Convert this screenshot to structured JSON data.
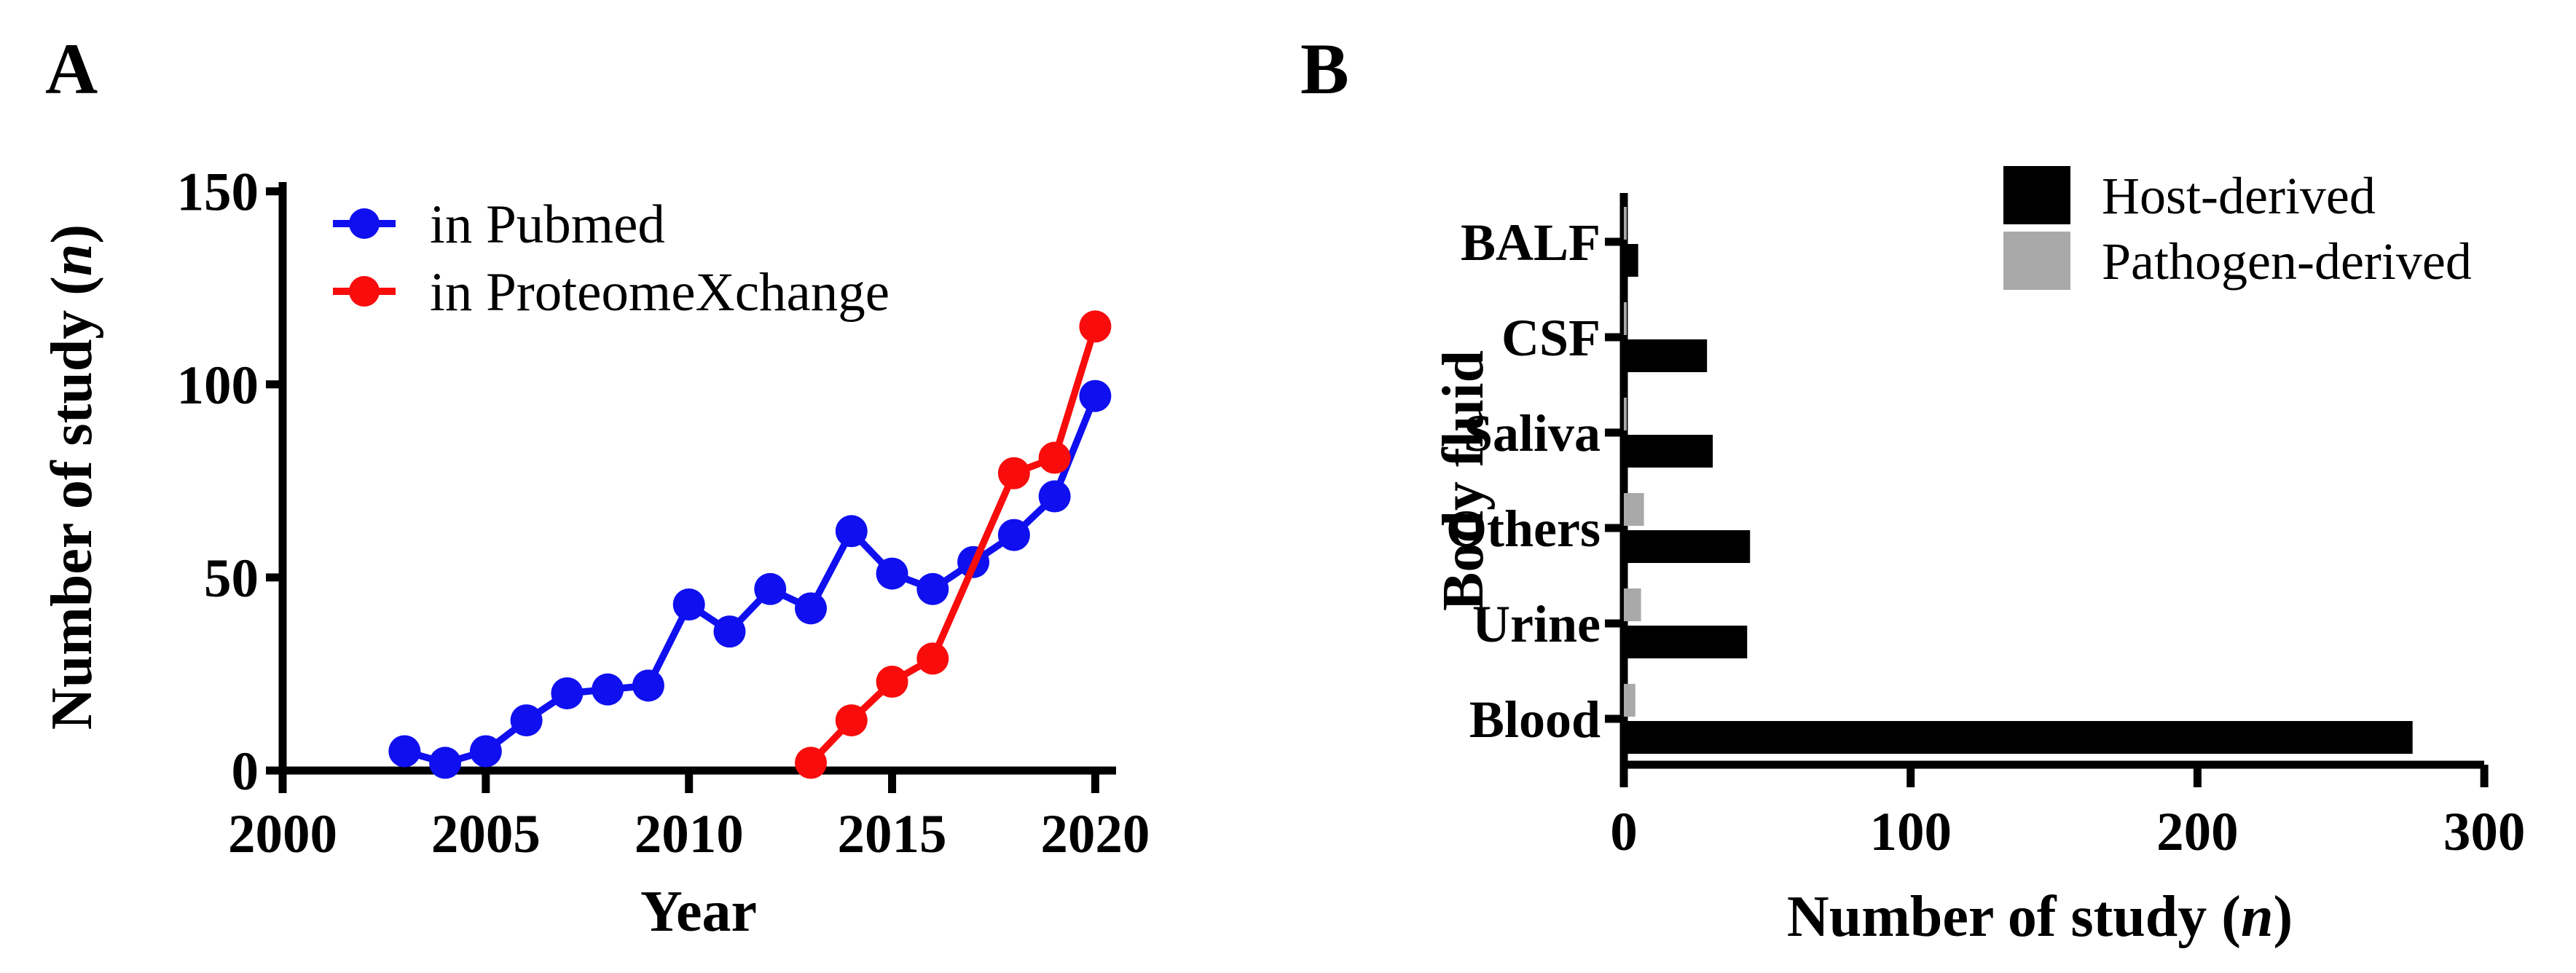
{
  "figure": {
    "type": "two-panel scientific figure",
    "background": "#ffffff"
  },
  "panels": {
    "a": {
      "letter": "A",
      "xlabel": "Year",
      "ylabel_prefix": "Number of study (",
      "ylabel_italic": "n",
      "ylabel_suffix": ")",
      "legend": [
        {
          "label": "in Pubmed"
        },
        {
          "label": "in ProteomeXchange"
        }
      ]
    },
    "b": {
      "letter": "B",
      "ylabel": "Body fluid",
      "xlabel_prefix": "Number of study (",
      "xlabel_italic": "n",
      "xlabel_suffix": ")",
      "legend": [
        {
          "label": "Host-derived"
        },
        {
          "label": "Pathogen-derived"
        }
      ]
    }
  },
  "colors": {
    "pubmed_blue": "#0f0ff0",
    "proteomexchange_red": "#f80c0c",
    "host_black": "#000000",
    "pathogen_gray": "#a9a9a9",
    "axis_black": "#000000"
  },
  "chart_data": [
    {
      "id": "studies-per-year",
      "type": "line",
      "title": "",
      "xlabel": "Year",
      "ylabel": "Number of study (n)",
      "xlim": [
        2000,
        2022
      ],
      "ylim": [
        0,
        150
      ],
      "xticks": [
        2000,
        2005,
        2010,
        2015,
        2020
      ],
      "yticks": [
        0,
        50,
        100,
        150
      ],
      "grid": false,
      "legend_position": "top-left-inside",
      "series": [
        {
          "name": "in Pubmed",
          "color": "#0f0ff0",
          "marker": "circle",
          "points": [
            [
              2003,
              5
            ],
            [
              2004,
              2
            ],
            [
              2005,
              5
            ],
            [
              2006,
              13
            ],
            [
              2007,
              20
            ],
            [
              2008,
              21
            ],
            [
              2009,
              22
            ],
            [
              2010,
              43
            ],
            [
              2011,
              36
            ],
            [
              2012,
              47
            ],
            [
              2013,
              42
            ],
            [
              2014,
              62
            ],
            [
              2015,
              51
            ],
            [
              2016,
              47
            ],
            [
              2017,
              54
            ],
            [
              2018,
              61
            ],
            [
              2019,
              71
            ],
            [
              2020,
              97
            ]
          ]
        },
        {
          "name": "in ProteomeXchange",
          "color": "#f80c0c",
          "marker": "circle",
          "points": [
            [
              2013,
              2
            ],
            [
              2014,
              13
            ],
            [
              2015,
              23
            ],
            [
              2016,
              29
            ],
            [
              2018,
              77
            ],
            [
              2019,
              81
            ],
            [
              2020,
              115
            ]
          ]
        }
      ]
    },
    {
      "id": "studies-per-body-fluid",
      "type": "bar",
      "orientation": "horizontal",
      "title": "",
      "xlabel": "Number of study (n)",
      "ylabel": "Body fluid",
      "xlim": [
        0,
        300
      ],
      "xticks": [
        0,
        100,
        200,
        300
      ],
      "grid": false,
      "legend_position": "top-right",
      "categories": [
        "BALF",
        "CSF",
        "Saliva",
        "Others",
        "Urine",
        "Blood"
      ],
      "series": [
        {
          "name": "Host-derived",
          "color": "#000000",
          "values": [
            5,
            29,
            31,
            44,
            43,
            275
          ]
        },
        {
          "name": "Pathogen-derived",
          "color": "#a9a9a9",
          "values": [
            1,
            1,
            1,
            7,
            6,
            4
          ]
        }
      ]
    }
  ]
}
